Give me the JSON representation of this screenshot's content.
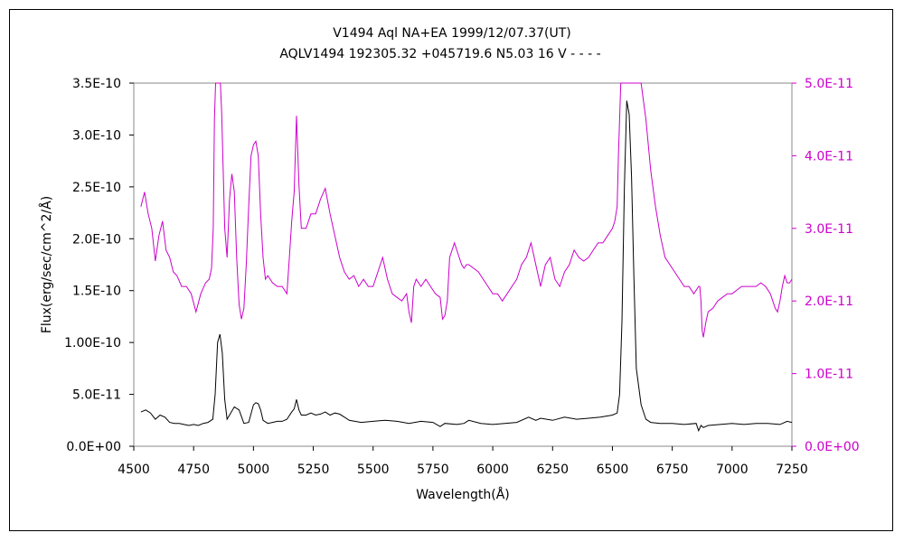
{
  "chart_data": {
    "type": "line",
    "title": "V1494 Aql    NA+EA    1999/12/07.37(UT)",
    "subtitle": "AQLV1494 192305.32 +045719.6 N5.03 16 V - - - -",
    "xlabel": "Wavelength(Å)",
    "ylabel": "Flux(erg/sec/cm^2/Å)",
    "xlim": [
      4500,
      7250
    ],
    "ylim_left": [
      0,
      3.5e-10
    ],
    "ylim_right": [
      0,
      5e-11
    ],
    "x_ticks": [
      "4500",
      "4750",
      "5000",
      "5250",
      "5500",
      "5750",
      "6000",
      "6250",
      "6500",
      "6750",
      "7000",
      "7250"
    ],
    "y_ticks_left": [
      "0.0E+00",
      "5.0E-11",
      "1.00E-10",
      "1.5E-10",
      "2.0E-10",
      "2.5E-10",
      "3.0E-10",
      "3.5E-10"
    ],
    "y_ticks_right": [
      "0.0E+00",
      "1.0E-11",
      "2.0E-11",
      "3.0E-11",
      "4.0E-11",
      "5.0E-11"
    ],
    "grid": false,
    "series": [
      {
        "axis": "left",
        "color": "#000000",
        "x": [
          4530,
          4550,
          4570,
          4590,
          4610,
          4630,
          4650,
          4670,
          4690,
          4710,
          4730,
          4750,
          4770,
          4790,
          4810,
          4830,
          4840,
          4850,
          4860,
          4870,
          4880,
          4890,
          4900,
          4920,
          4940,
          4960,
          4980,
          5000,
          5010,
          5020,
          5030,
          5040,
          5060,
          5080,
          5100,
          5120,
          5140,
          5160,
          5170,
          5180,
          5190,
          5200,
          5220,
          5240,
          5260,
          5280,
          5300,
          5320,
          5340,
          5360,
          5380,
          5400,
          5450,
          5500,
          5550,
          5600,
          5650,
          5700,
          5750,
          5780,
          5800,
          5850,
          5880,
          5900,
          5950,
          6000,
          6050,
          6100,
          6150,
          6180,
          6200,
          6250,
          6300,
          6350,
          6400,
          6450,
          6500,
          6520,
          6530,
          6540,
          6550,
          6560,
          6570,
          6580,
          6590,
          6600,
          6620,
          6640,
          6660,
          6700,
          6750,
          6800,
          6850,
          6860,
          6870,
          6880,
          6900,
          6950,
          7000,
          7050,
          7100,
          7150,
          7200,
          7230,
          7250
        ],
        "y": [
          3.3e-11,
          3.5e-11,
          3.2e-11,
          2.6e-11,
          3e-11,
          2.8e-11,
          2.3e-11,
          2.2e-11,
          2.2e-11,
          2.1e-11,
          2e-11,
          2.1e-11,
          2e-11,
          2.2e-11,
          2.3e-11,
          2.6e-11,
          5e-11,
          1e-10,
          1.08e-10,
          9e-11,
          4.5e-11,
          2.6e-11,
          3e-11,
          3.8e-11,
          3.5e-11,
          2.2e-11,
          2.3e-11,
          4e-11,
          4.2e-11,
          4.1e-11,
          3.5e-11,
          2.5e-11,
          2.2e-11,
          2.3e-11,
          2.4e-11,
          2.4e-11,
          2.6e-11,
          3.3e-11,
          3.6e-11,
          4.5e-11,
          3.5e-11,
          3e-11,
          3e-11,
          3.2e-11,
          3e-11,
          3.1e-11,
          3.3e-11,
          3e-11,
          3.2e-11,
          3.1e-11,
          2.8e-11,
          2.5e-11,
          2.3e-11,
          2.4e-11,
          2.5e-11,
          2.4e-11,
          2.2e-11,
          2.4e-11,
          2.3e-11,
          1.9e-11,
          2.2e-11,
          2.1e-11,
          2.2e-11,
          2.5e-11,
          2.2e-11,
          2.1e-11,
          2.2e-11,
          2.3e-11,
          2.8e-11,
          2.5e-11,
          2.7e-11,
          2.5e-11,
          2.8e-11,
          2.6e-11,
          2.7e-11,
          2.8e-11,
          3e-11,
          3.2e-11,
          5e-11,
          1.2e-10,
          2.5e-10,
          3.33e-10,
          3.2e-10,
          2.6e-10,
          1.6e-10,
          7.5e-11,
          4e-11,
          2.6e-11,
          2.3e-11,
          2.2e-11,
          2.2e-11,
          2.1e-11,
          2.2e-11,
          1.5e-11,
          2e-11,
          1.8e-11,
          2e-11,
          2.1e-11,
          2.2e-11,
          2.1e-11,
          2.2e-11,
          2.2e-11,
          2.1e-11,
          2.4e-11,
          2.3e-11
        ]
      },
      {
        "axis": "right",
        "color": "#cc00cc",
        "x": [
          4530,
          4545,
          4560,
          4575,
          4590,
          4605,
          4620,
          4635,
          4650,
          4665,
          4680,
          4700,
          4720,
          4740,
          4760,
          4780,
          4800,
          4815,
          4825,
          4832,
          4837,
          4842,
          4847,
          4852,
          4857,
          4862,
          4867,
          4880,
          4890,
          4900,
          4910,
          4920,
          4930,
          4940,
          4950,
          4960,
          4970,
          4980,
          4990,
          5000,
          5010,
          5020,
          5030,
          5040,
          5050,
          5060,
          5070,
          5080,
          5100,
          5120,
          5140,
          5150,
          5160,
          5170,
          5180,
          5190,
          5200,
          5220,
          5240,
          5260,
          5280,
          5300,
          5320,
          5340,
          5360,
          5380,
          5400,
          5420,
          5440,
          5460,
          5480,
          5500,
          5520,
          5540,
          5560,
          5580,
          5600,
          5620,
          5640,
          5650,
          5660,
          5670,
          5680,
          5700,
          5720,
          5740,
          5760,
          5780,
          5790,
          5800,
          5810,
          5820,
          5840,
          5860,
          5870,
          5880,
          5890,
          5900,
          5920,
          5940,
          5960,
          5980,
          6000,
          6020,
          6040,
          6060,
          6080,
          6100,
          6120,
          6140,
          6160,
          6180,
          6200,
          6220,
          6240,
          6260,
          6280,
          6300,
          6320,
          6340,
          6360,
          6380,
          6400,
          6420,
          6440,
          6460,
          6480,
          6500,
          6510,
          6520,
          6525,
          6530,
          6535,
          6540,
          6545,
          6550,
          6555,
          6560,
          6570,
          6580,
          6590,
          6600,
          6610,
          6620,
          6640,
          6660,
          6680,
          6700,
          6720,
          6740,
          6760,
          6780,
          6800,
          6820,
          6840,
          6860,
          6865,
          6870,
          6875,
          6880,
          6890,
          6900,
          6920,
          6940,
          6960,
          6980,
          7000,
          7020,
          7040,
          7060,
          7080,
          7100,
          7120,
          7140,
          7160,
          7180,
          7190,
          7200,
          7210,
          7220,
          7230,
          7240,
          7250
        ],
        "y": [
          3.3e-11,
          3.5e-11,
          3.2e-11,
          3e-11,
          2.55e-11,
          2.9e-11,
          3.1e-11,
          2.7e-11,
          2.6e-11,
          2.4e-11,
          2.35e-11,
          2.2e-11,
          2.2e-11,
          2.1e-11,
          1.85e-11,
          2.1e-11,
          2.25e-11,
          2.3e-11,
          2.45e-11,
          3e-11,
          4.5e-11,
          5e-11,
          5e-11,
          5e-11,
          5e-11,
          5e-11,
          4.6e-11,
          3e-11,
          2.6e-11,
          3.4e-11,
          3.75e-11,
          3.5e-11,
          2.6e-11,
          1.95e-11,
          1.75e-11,
          1.9e-11,
          2.5e-11,
          3.3e-11,
          4e-11,
          4.15e-11,
          4.2e-11,
          4e-11,
          3.2e-11,
          2.6e-11,
          2.3e-11,
          2.35e-11,
          2.3e-11,
          2.25e-11,
          2.2e-11,
          2.2e-11,
          2.1e-11,
          2.6e-11,
          3.1e-11,
          3.5e-11,
          4.55e-11,
          3.6e-11,
          3e-11,
          3e-11,
          3.2e-11,
          3.2e-11,
          3.4e-11,
          3.55e-11,
          3.2e-11,
          2.9e-11,
          2.6e-11,
          2.4e-11,
          2.3e-11,
          2.35e-11,
          2.2e-11,
          2.3e-11,
          2.2e-11,
          2.2e-11,
          2.4e-11,
          2.6e-11,
          2.3e-11,
          2.1e-11,
          2.05e-11,
          2e-11,
          2.1e-11,
          1.85e-11,
          1.7e-11,
          2.2e-11,
          2.3e-11,
          2.2e-11,
          2.3e-11,
          2.2e-11,
          2.1e-11,
          2.05e-11,
          1.75e-11,
          1.8e-11,
          2e-11,
          2.6e-11,
          2.8e-11,
          2.6e-11,
          2.5e-11,
          2.45e-11,
          2.5e-11,
          2.5e-11,
          2.45e-11,
          2.4e-11,
          2.3e-11,
          2.2e-11,
          2.1e-11,
          2.1e-11,
          2e-11,
          2.1e-11,
          2.2e-11,
          2.3e-11,
          2.5e-11,
          2.6e-11,
          2.8e-11,
          2.5e-11,
          2.2e-11,
          2.5e-11,
          2.6e-11,
          2.3e-11,
          2.2e-11,
          2.4e-11,
          2.5e-11,
          2.7e-11,
          2.6e-11,
          2.55e-11,
          2.6e-11,
          2.7e-11,
          2.8e-11,
          2.8e-11,
          2.9e-11,
          3e-11,
          3.1e-11,
          3.3e-11,
          4e-11,
          4.5e-11,
          5e-11,
          5e-11,
          5e-11,
          5e-11,
          5e-11,
          5e-11,
          5e-11,
          5e-11,
          5e-11,
          5e-11,
          5e-11,
          5e-11,
          4.5e-11,
          3.8e-11,
          3.3e-11,
          2.9e-11,
          2.6e-11,
          2.5e-11,
          2.4e-11,
          2.3e-11,
          2.2e-11,
          2.2e-11,
          2.1e-11,
          2.2e-11,
          2.2e-11,
          2e-11,
          1.6e-11,
          1.5e-11,
          1.7e-11,
          1.85e-11,
          1.9e-11,
          2e-11,
          2.05e-11,
          2.1e-11,
          2.1e-11,
          2.15e-11,
          2.2e-11,
          2.2e-11,
          2.2e-11,
          2.2e-11,
          2.25e-11,
          2.2e-11,
          2.1e-11,
          1.9e-11,
          1.85e-11,
          2e-11,
          2.2e-11,
          2.35e-11,
          2.25e-11,
          2.25e-11,
          2.3e-11
        ]
      }
    ]
  }
}
